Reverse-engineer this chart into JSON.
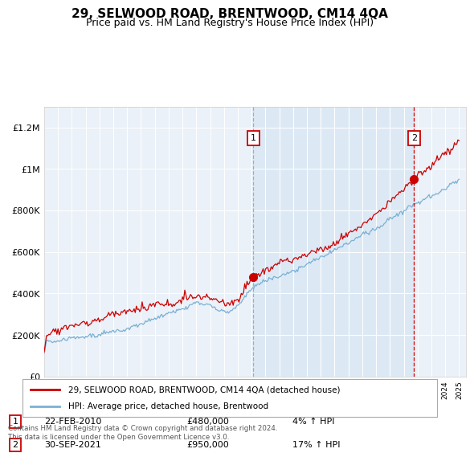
{
  "title": "29, SELWOOD ROAD, BRENTWOOD, CM14 4QA",
  "subtitle": "Price paid vs. HM Land Registry's House Price Index (HPI)",
  "title_fontsize": 11,
  "subtitle_fontsize": 9,
  "ylabel_vals": [
    "£0",
    "£200K",
    "£400K",
    "£600K",
    "£800K",
    "£1M",
    "£1.2M"
  ],
  "yticks": [
    0,
    200000,
    400000,
    600000,
    800000,
    1000000,
    1200000
  ],
  "ylim": [
    0,
    1300000
  ],
  "xlim_start": 1995,
  "xlim_end": 2025.5,
  "transaction1": {
    "date_num": 2010.13,
    "price": 480000,
    "label": "1",
    "date_str": "22-FEB-2010",
    "price_str": "£480,000",
    "pct_str": "4% ↑ HPI"
  },
  "transaction2": {
    "date_num": 2021.75,
    "price": 950000,
    "label": "2",
    "date_str": "30-SEP-2021",
    "price_str": "£950,000",
    "pct_str": "17% ↑ HPI"
  },
  "shaded_region_start": 2010.13,
  "shaded_region_end": 2021.75,
  "red_line_color": "#cc0000",
  "blue_line_color": "#7ab0d4",
  "shaded_color": "#dce9f5",
  "dashed_line1_color": "#aaaaaa",
  "dashed_line2_color": "#cc0000",
  "legend_label_red": "29, SELWOOD ROAD, BRENTWOOD, CM14 4QA (detached house)",
  "legend_label_blue": "HPI: Average price, detached house, Brentwood",
  "footer": "Contains HM Land Registry data © Crown copyright and database right 2024.\nThis data is licensed under the Open Government Licence v3.0.",
  "background_color": "#ffffff",
  "plot_bg_color": "#eaf1f8",
  "grid_color": "#ffffff"
}
